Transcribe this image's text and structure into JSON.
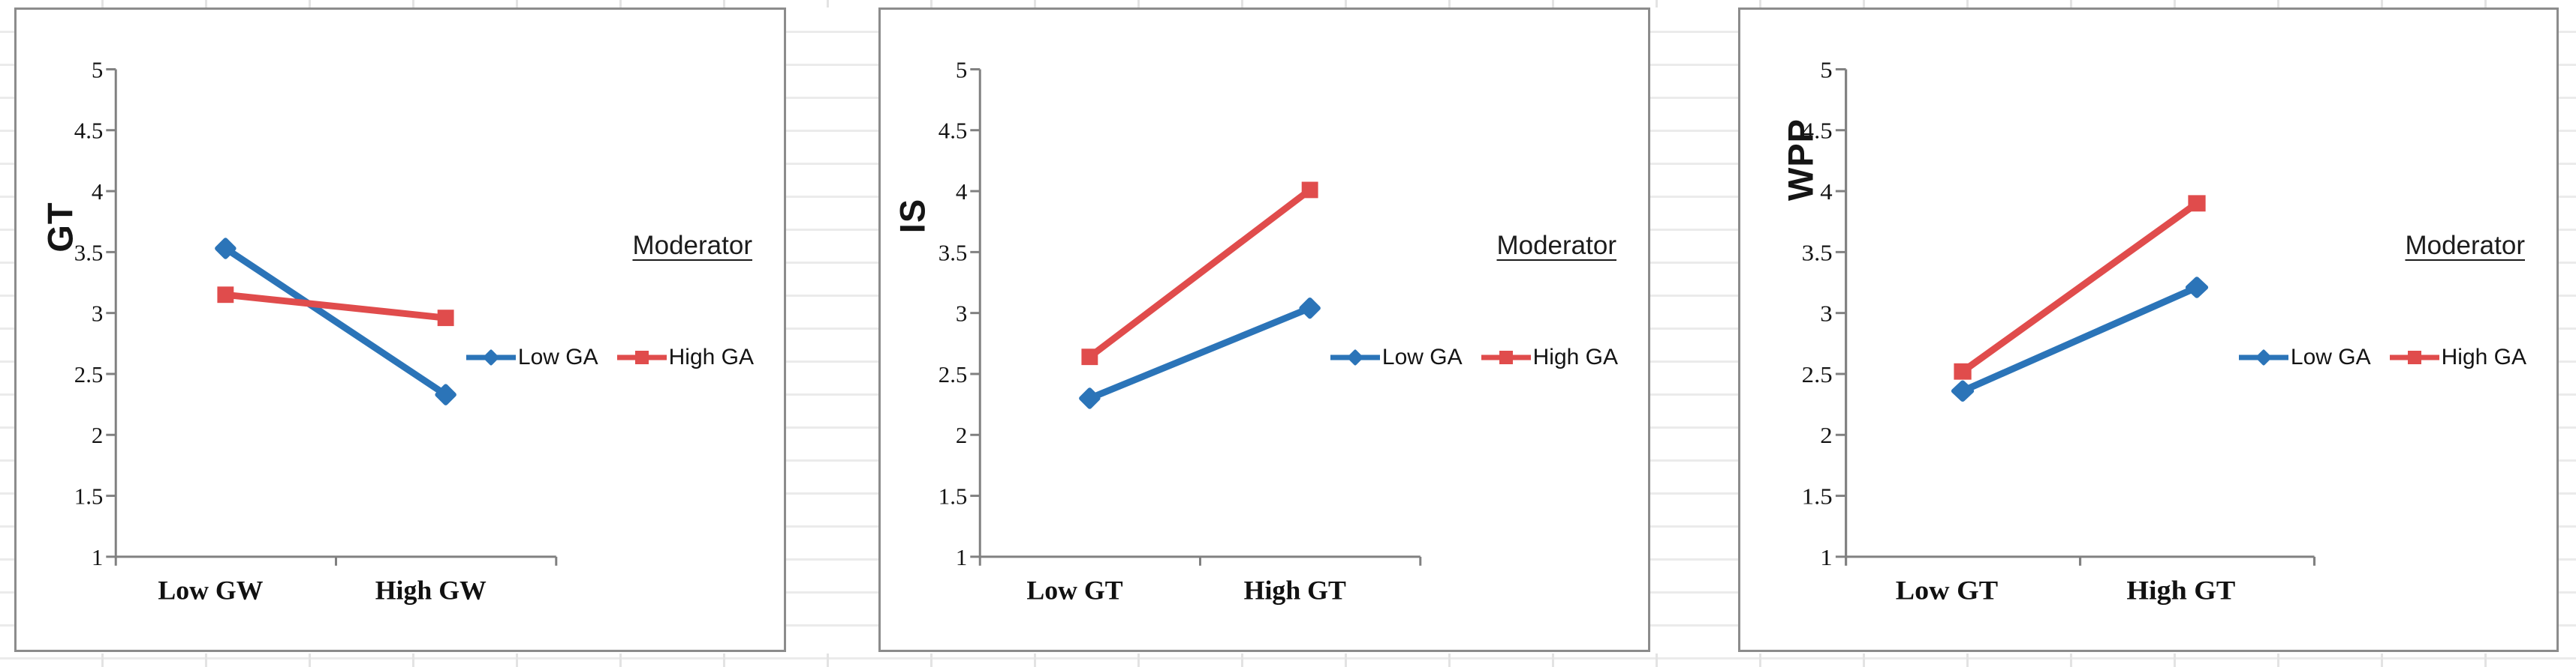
{
  "page_type": "worksheet-with-three-interaction-plots",
  "colors": {
    "series_blue": "#2B74B8",
    "series_red": "#E04C4C",
    "axis": "#808080",
    "chart_border": "#8c8c8c",
    "text": "#141414",
    "worksheet_grid": "#ebebeb"
  },
  "chart_data": [
    {
      "type": "line",
      "ylabel": "GT",
      "legend_title": "Moderator",
      "categories": [
        "Low GW",
        "High GW"
      ],
      "ylim": [
        1,
        5
      ],
      "y_ticks": [
        1,
        1.5,
        2,
        2.5,
        3,
        3.5,
        4,
        4.5,
        5
      ],
      "grid": false,
      "legend_position": "right-middle",
      "series": [
        {
          "name": "Low GA",
          "marker": "diamond",
          "color": "#2B74B8",
          "values": [
            3.53,
            2.33
          ]
        },
        {
          "name": "High GA",
          "marker": "square",
          "color": "#E04C4C",
          "values": [
            3.15,
            2.96
          ]
        }
      ]
    },
    {
      "type": "line",
      "ylabel": "IS",
      "legend_title": "Moderator",
      "categories": [
        "Low GT",
        "High GT"
      ],
      "ylim": [
        1,
        5
      ],
      "y_ticks": [
        1,
        1.5,
        2,
        2.5,
        3,
        3.5,
        4,
        4.5,
        5
      ],
      "grid": false,
      "legend_position": "right-middle",
      "series": [
        {
          "name": "Low GA",
          "marker": "diamond",
          "color": "#2B74B8",
          "values": [
            2.3,
            3.04
          ]
        },
        {
          "name": "High GA",
          "marker": "square",
          "color": "#E04C4C",
          "values": [
            2.64,
            4.01
          ]
        }
      ]
    },
    {
      "type": "line",
      "ylabel": "WPP",
      "legend_title": "Moderator",
      "categories": [
        "Low GT",
        "High GT"
      ],
      "ylim": [
        1,
        5
      ],
      "y_ticks": [
        1,
        1.5,
        2,
        2.5,
        3,
        3.5,
        4,
        4.5,
        5
      ],
      "grid": false,
      "legend_position": "right-middle",
      "series": [
        {
          "name": "Low GA",
          "marker": "diamond",
          "color": "#2B74B8",
          "values": [
            2.36,
            3.21
          ]
        },
        {
          "name": "High GA",
          "marker": "square",
          "color": "#E04C4C",
          "values": [
            2.52,
            3.9
          ]
        }
      ]
    }
  ]
}
